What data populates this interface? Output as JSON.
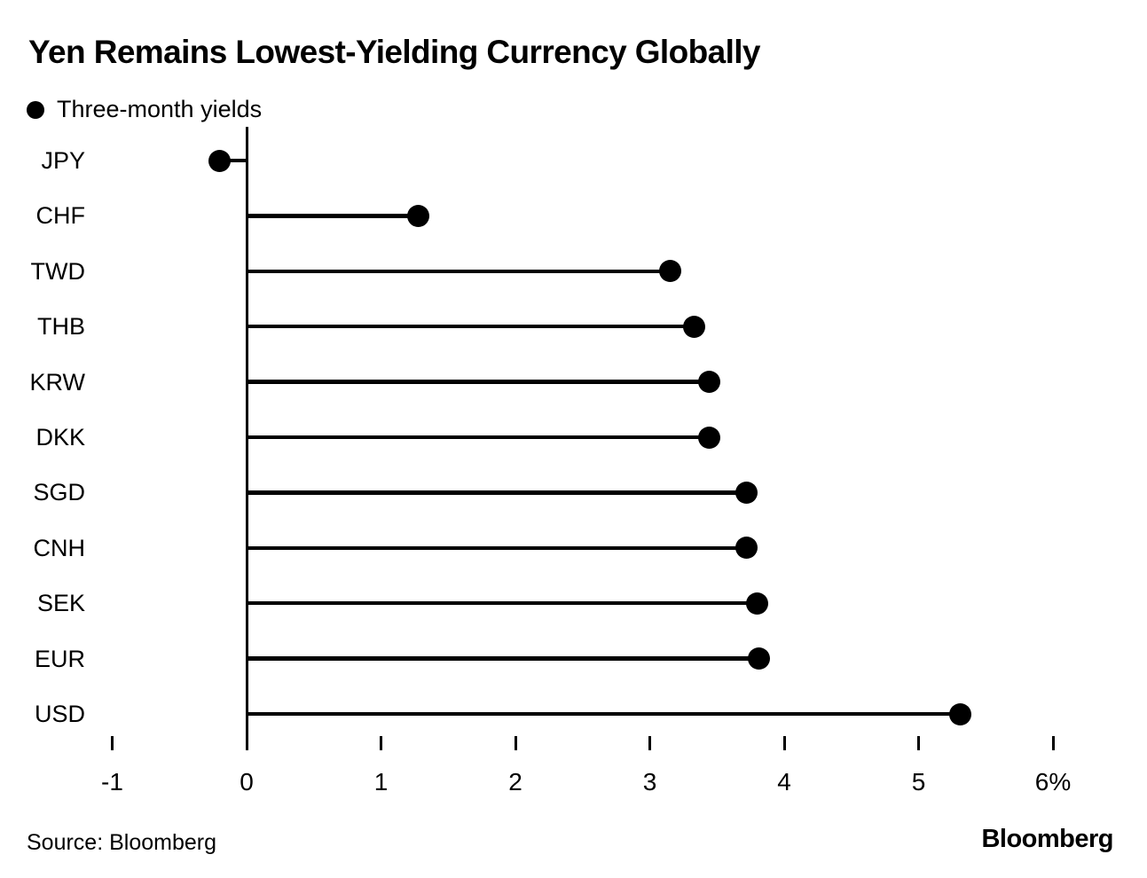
{
  "header": {
    "title": "Yen Remains Lowest-Yielding Currency Globally",
    "legend_label": "Three-month yields"
  },
  "footer": {
    "source": "Source: Bloomberg",
    "logo": "Bloomberg"
  },
  "chart_data": {
    "type": "bar",
    "variant": "lollipop",
    "orientation": "horizontal",
    "title": "Yen Remains Lowest-Yielding Currency Globally",
    "legend": [
      "Three-month yields"
    ],
    "legend_position": "top-left",
    "categories": [
      "JPY",
      "CHF",
      "TWD",
      "THB",
      "KRW",
      "DKK",
      "SGD",
      "CNH",
      "SEK",
      "EUR",
      "USD"
    ],
    "values": [
      -0.2,
      1.28,
      3.15,
      3.33,
      3.44,
      3.44,
      3.72,
      3.72,
      3.8,
      3.81,
      5.31
    ],
    "unit": "%",
    "xlabel": "",
    "ylabel": "",
    "xlim": [
      -1,
      6
    ],
    "x_ticks": [
      -1,
      0,
      1,
      2,
      3,
      4,
      5,
      6
    ],
    "x_tick_labels": [
      "-1",
      "0",
      "1",
      "2",
      "3",
      "4",
      "5",
      "6%"
    ],
    "grid": false,
    "marker_color": "#000000",
    "background_color": "#ffffff"
  }
}
